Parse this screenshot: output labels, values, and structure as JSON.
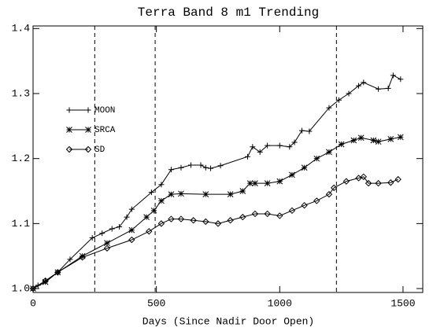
{
  "chart_data": {
    "type": "line",
    "title": "Terra Band 8 m1 Trending",
    "xlabel": "Days (Since Nadir Door Open)",
    "xlim": [
      0,
      1580
    ],
    "xticks": [
      0,
      500,
      1000,
      1500
    ],
    "ylim": [
      0.994,
      1.404
    ],
    "yticks": [
      {
        "value": 1.0,
        "label": "1.0"
      },
      1.1,
      1.2,
      1.3,
      1.4
    ],
    "vlines": [
      250,
      495,
      1230
    ],
    "legend": "upper left",
    "series": [
      {
        "name": "MOON",
        "color": "#000000",
        "marker": "plus",
        "x": [
          0,
          20,
          50,
          100,
          150,
          240,
          280,
          320,
          350,
          380,
          400,
          480,
          520,
          560,
          600,
          640,
          680,
          700,
          720,
          760,
          870,
          890,
          920,
          950,
          1000,
          1040,
          1060,
          1090,
          1120,
          1200,
          1240,
          1280,
          1320,
          1340,
          1400,
          1440,
          1460,
          1490
        ],
        "values": [
          1.0,
          1.005,
          1.012,
          1.025,
          1.045,
          1.078,
          1.085,
          1.092,
          1.095,
          1.11,
          1.122,
          1.148,
          1.16,
          1.183,
          1.186,
          1.19,
          1.19,
          1.186,
          1.185,
          1.189,
          1.203,
          1.218,
          1.21,
          1.22,
          1.22,
          1.218,
          1.225,
          1.243,
          1.242,
          1.278,
          1.29,
          1.3,
          1.312,
          1.317,
          1.307,
          1.308,
          1.328,
          1.322
        ]
      },
      {
        "name": "SRCA",
        "color": "#000000",
        "marker": "asterisk",
        "x": [
          0,
          50,
          100,
          200,
          300,
          400,
          460,
          490,
          520,
          560,
          600,
          700,
          800,
          850,
          880,
          900,
          950,
          1000,
          1050,
          1100,
          1150,
          1200,
          1250,
          1300,
          1330,
          1380,
          1400,
          1450,
          1490
        ],
        "values": [
          1.0,
          1.01,
          1.025,
          1.05,
          1.07,
          1.09,
          1.11,
          1.12,
          1.135,
          1.145,
          1.146,
          1.145,
          1.145,
          1.15,
          1.162,
          1.162,
          1.162,
          1.165,
          1.175,
          1.186,
          1.2,
          1.21,
          1.222,
          1.228,
          1.232,
          1.228,
          1.226,
          1.23,
          1.233
        ]
      },
      {
        "name": "SD",
        "color": "#000000",
        "marker": "diamond",
        "x": [
          0,
          50,
          100,
          200,
          300,
          400,
          470,
          520,
          560,
          600,
          650,
          700,
          750,
          800,
          850,
          900,
          950,
          1000,
          1050,
          1100,
          1150,
          1200,
          1220,
          1270,
          1320,
          1340,
          1360,
          1400,
          1450,
          1480
        ],
        "values": [
          1.0,
          1.012,
          1.025,
          1.048,
          1.062,
          1.075,
          1.088,
          1.1,
          1.107,
          1.107,
          1.105,
          1.103,
          1.1,
          1.105,
          1.11,
          1.115,
          1.115,
          1.112,
          1.12,
          1.128,
          1.135,
          1.145,
          1.155,
          1.165,
          1.17,
          1.172,
          1.162,
          1.162,
          1.163,
          1.168
        ]
      }
    ]
  }
}
